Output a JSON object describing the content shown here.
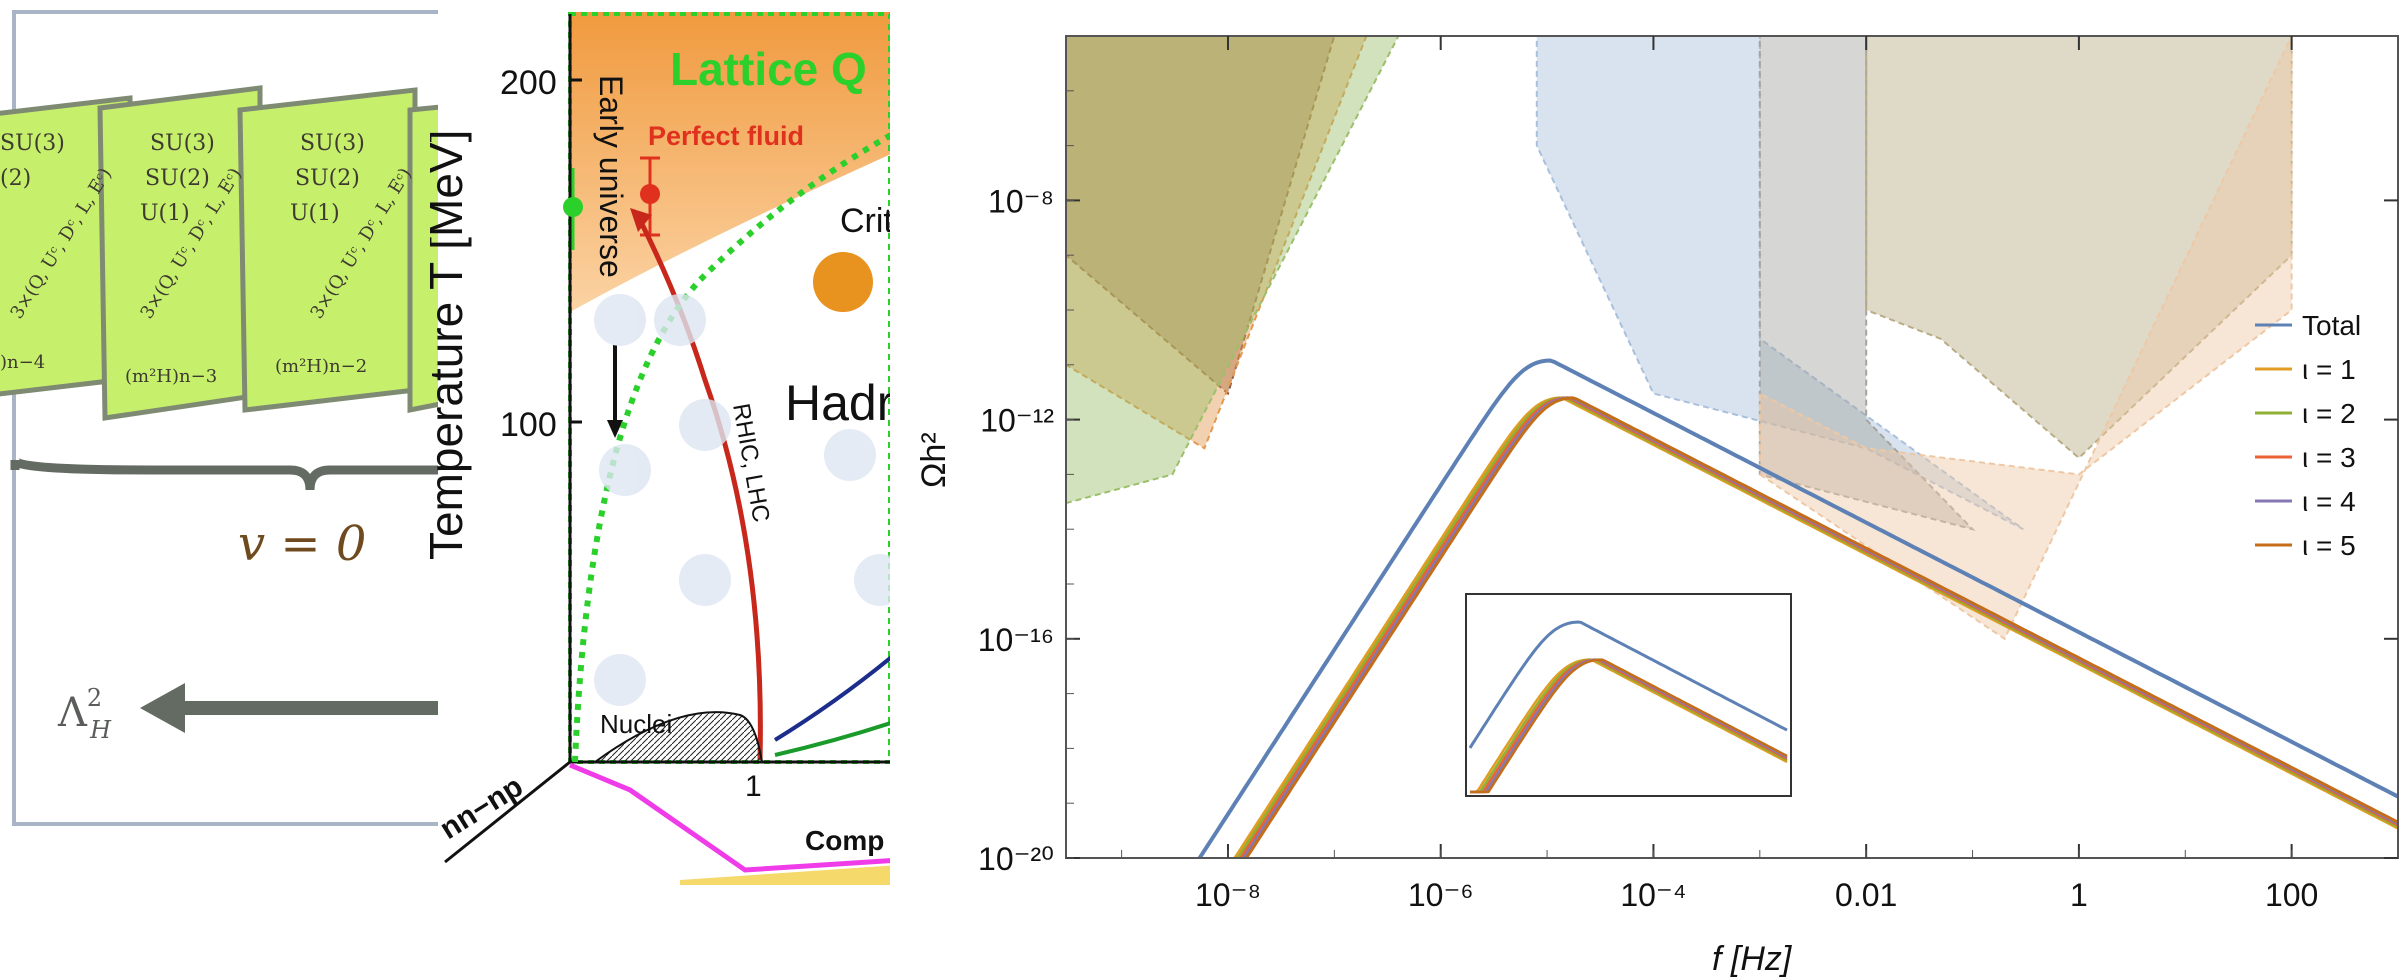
{
  "left_panel": {
    "cards": [
      {
        "lines": [
          "SU(3)",
          "SU(2)",
          "U(1)",
          "3×(Q, Uᶜ, Dᶜ, L, Eᶜ)",
          "(m²H)n−3"
        ]
      },
      {
        "lines": [
          "SU(3)",
          "SU(2)",
          "U(1)",
          "3×(Q, Uᶜ, Dᶜ, L, Eᶜ)",
          "(m²H)n−2"
        ]
      },
      {
        "lines": [
          "SU(3)",
          "(2)",
          "3×(Q, Uᶜ, Dᶜ, L, Eᶜ)",
          ")n−4"
        ]
      }
    ],
    "brace_label": "v = 0",
    "arrow_label": "Λ",
    "arrow_sup": "2",
    "arrow_sub": "H"
  },
  "middle_panel": {
    "y_axis_label": "Temperature T [MeV]",
    "y_ticks": [
      "200",
      "100"
    ],
    "x_tick": "1",
    "diag_axis_label": "nn−np",
    "lattice_label": "Lattice  Q",
    "perfect_fluid": "Perfect fluid",
    "early_universe": "Early universe",
    "critical": "Crit",
    "hadron": "Hadr",
    "rhic": "RHIC, LHC",
    "nuclei": "Nuclei",
    "comp": "Comp"
  },
  "chart_data": {
    "type": "line",
    "title": "",
    "xlabel": "f  [Hz]",
    "ylabel": "Ωh²",
    "x_scale": "log",
    "y_scale": "log",
    "xlim": [
      3e-10,
      1000
    ],
    "ylim": [
      1e-20,
      1e-05
    ],
    "x_ticks": [
      {
        "v": 1e-08,
        "label": "10⁻⁸"
      },
      {
        "v": 1e-06,
        "label": "10⁻⁶"
      },
      {
        "v": 0.0001,
        "label": "10⁻⁴"
      },
      {
        "v": 0.01,
        "label": "0.01"
      },
      {
        "v": 1,
        "label": "1"
      },
      {
        "v": 100,
        "label": "100"
      }
    ],
    "y_ticks": [
      {
        "v": 1e-08,
        "label": "10⁻⁸"
      },
      {
        "v": 1e-12,
        "label": "10⁻¹²"
      },
      {
        "v": 1e-16,
        "label": "10⁻¹⁶"
      },
      {
        "v": 1e-20,
        "label": "10⁻²⁰"
      }
    ],
    "legend_position": "right",
    "series": [
      {
        "name": "Total",
        "color": "#5e81b5",
        "peak_f": 1.1e-05,
        "peak_omega": 1.2e-11
      },
      {
        "name": "ι = 1",
        "color": "#e19c24",
        "peak_f": 1.4e-05,
        "peak_omega": 2.5e-12
      },
      {
        "name": "ι = 2",
        "color": "#8fb032",
        "peak_f": 1.5e-05,
        "peak_omega": 2.5e-12
      },
      {
        "name": "ι = 3",
        "color": "#eb6235",
        "peak_f": 1.6e-05,
        "peak_omega": 2.5e-12
      },
      {
        "name": "ι = 4",
        "color": "#8778b3",
        "peak_f": 1.7e-05,
        "peak_omega": 2.5e-12
      },
      {
        "name": "ι = 5",
        "color": "#c56e1a",
        "peak_f": 1.8e-05,
        "peak_omega": 2.5e-12
      }
    ],
    "sensitivity_regions": [
      {
        "color": "#8c5a40",
        "points": [
          [
            3e-10,
            1e-05
          ],
          [
            1e-07,
            1e-05
          ],
          [
            1e-08,
            3e-12
          ],
          [
            3e-10,
            1e-09
          ]
        ]
      },
      {
        "color": "#e39a50",
        "points": [
          [
            3e-10,
            1e-05
          ],
          [
            2e-07,
            1e-05
          ],
          [
            6e-09,
            3e-13
          ],
          [
            3e-10,
            1e-11
          ]
        ]
      },
      {
        "color": "#9cbf6a",
        "points": [
          [
            3e-10,
            1e-05
          ],
          [
            4e-07,
            1e-05
          ],
          [
            3e-09,
            1e-13
          ],
          [
            3e-10,
            3e-14
          ]
        ]
      },
      {
        "color": "#a9c0dc",
        "points": [
          [
            8e-06,
            1e-05
          ],
          [
            0.001,
            1e-05
          ],
          [
            0.001,
            3e-11
          ],
          [
            0.3,
            1e-14
          ],
          [
            0.01,
            3e-13
          ],
          [
            0.0001,
            3e-12
          ],
          [
            8e-06,
            1e-07
          ]
        ]
      },
      {
        "color": "#a4a4a0",
        "points": [
          [
            0.001,
            1e-05
          ],
          [
            0.01,
            1e-05
          ],
          [
            0.01,
            1e-12
          ],
          [
            0.1,
            1e-14
          ],
          [
            0.001,
            1e-13
          ]
        ]
      },
      {
        "color": "#b9ac84",
        "points": [
          [
            0.01,
            1e-05
          ],
          [
            100,
            1e-05
          ],
          [
            100,
            1e-09
          ],
          [
            1,
            2e-13
          ],
          [
            0.05,
            3e-11
          ],
          [
            0.01,
            1e-10
          ]
        ]
      },
      {
        "color": "#eec8a4",
        "points": [
          [
            0.001,
            1e-13
          ],
          [
            0.2,
            1e-16
          ],
          [
            100,
            1e-05
          ],
          [
            100,
            1e-10
          ],
          [
            1,
            1e-13
          ],
          [
            0.01,
            3e-13
          ],
          [
            0.001,
            3e-12
          ]
        ]
      }
    ],
    "inset": {
      "type": "line",
      "note": "zoom of spectrum peaks"
    }
  }
}
